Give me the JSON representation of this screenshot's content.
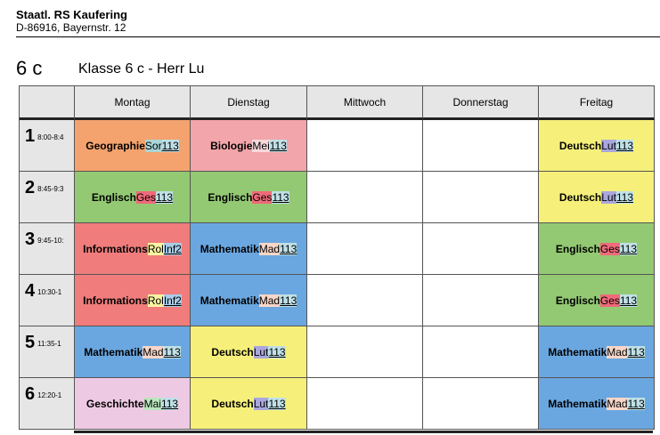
{
  "header": {
    "school_name": "Staatl. RS Kaufering",
    "address": "D-86916, Bayernstr. 12"
  },
  "class": {
    "code": "6 c",
    "title": "Klasse 6 c - Herr Lu"
  },
  "days": [
    "Montag",
    "Dienstag",
    "Mittwoch",
    "Donnerstag",
    "Freitag"
  ],
  "periods": [
    {
      "num": "1",
      "time": "8:00-8:4"
    },
    {
      "num": "2",
      "time": "8:45-9:3"
    },
    {
      "num": "3",
      "time": "9:45-10:"
    },
    {
      "num": "4",
      "time": "10:30-1"
    },
    {
      "num": "5",
      "time": "11:35-1"
    },
    {
      "num": "6",
      "time": "12:20-1"
    }
  ],
  "lessons": [
    [
      {
        "subject": "Geographie",
        "teacher": "Sor",
        "room": "113"
      },
      {
        "subject": "Biologie",
        "teacher": "Mei",
        "room": "113"
      },
      null,
      null,
      {
        "subject": "Deutsch",
        "teacher": "Lut",
        "room": "113"
      }
    ],
    [
      {
        "subject": "Englisch",
        "teacher": "Ges",
        "room": "113"
      },
      {
        "subject": "Englisch",
        "teacher": "Ges",
        "room": "113"
      },
      null,
      null,
      {
        "subject": "Deutsch",
        "teacher": "Lut",
        "room": "113"
      }
    ],
    [
      {
        "subject": "Informations",
        "teacher": "Rol",
        "room": "Inf2"
      },
      {
        "subject": "Mathematik",
        "teacher": "Mad",
        "room": "113"
      },
      null,
      null,
      {
        "subject": "Englisch",
        "teacher": "Ges",
        "room": "113"
      }
    ],
    [
      {
        "subject": "Informations",
        "teacher": "Rol",
        "room": "Inf2"
      },
      {
        "subject": "Mathematik",
        "teacher": "Mad",
        "room": "113"
      },
      null,
      null,
      {
        "subject": "Englisch",
        "teacher": "Ges",
        "room": "113"
      }
    ],
    [
      {
        "subject": "Mathematik",
        "teacher": "Mad",
        "room": "113"
      },
      {
        "subject": "Deutsch",
        "teacher": "Lut",
        "room": "113"
      },
      null,
      null,
      {
        "subject": "Mathematik",
        "teacher": "Mad",
        "room": "113"
      }
    ],
    [
      {
        "subject": "Geschichte",
        "teacher": "Mai",
        "room": "113"
      },
      {
        "subject": "Deutsch",
        "teacher": "Lut",
        "room": "113"
      },
      null,
      null,
      {
        "subject": "Mathematik",
        "teacher": "Mad",
        "room": "113"
      }
    ]
  ],
  "subject_colors": {
    "Geographie": "#f4a36e",
    "Biologie": "#f2a5aa",
    "Englisch": "#93c972",
    "Informations": "#f07c7c",
    "Mathematik": "#6aa7e0",
    "Deutsch": "#f6f07a",
    "Geschichte": "#eec9e4"
  },
  "teacher_colors": {
    "Sor": "#a9d6d8",
    "Mei": "#f7d9dc",
    "Ges": "#f06a7a",
    "Rol": "#f7f2a0",
    "Mad": "#f8d6c8",
    "Lut": "#a9a7dd",
    "Mai": "#b9e6bd"
  },
  "room_colors": {
    "113": "#bfe0e6",
    "Inf2": "#a9cde8"
  }
}
